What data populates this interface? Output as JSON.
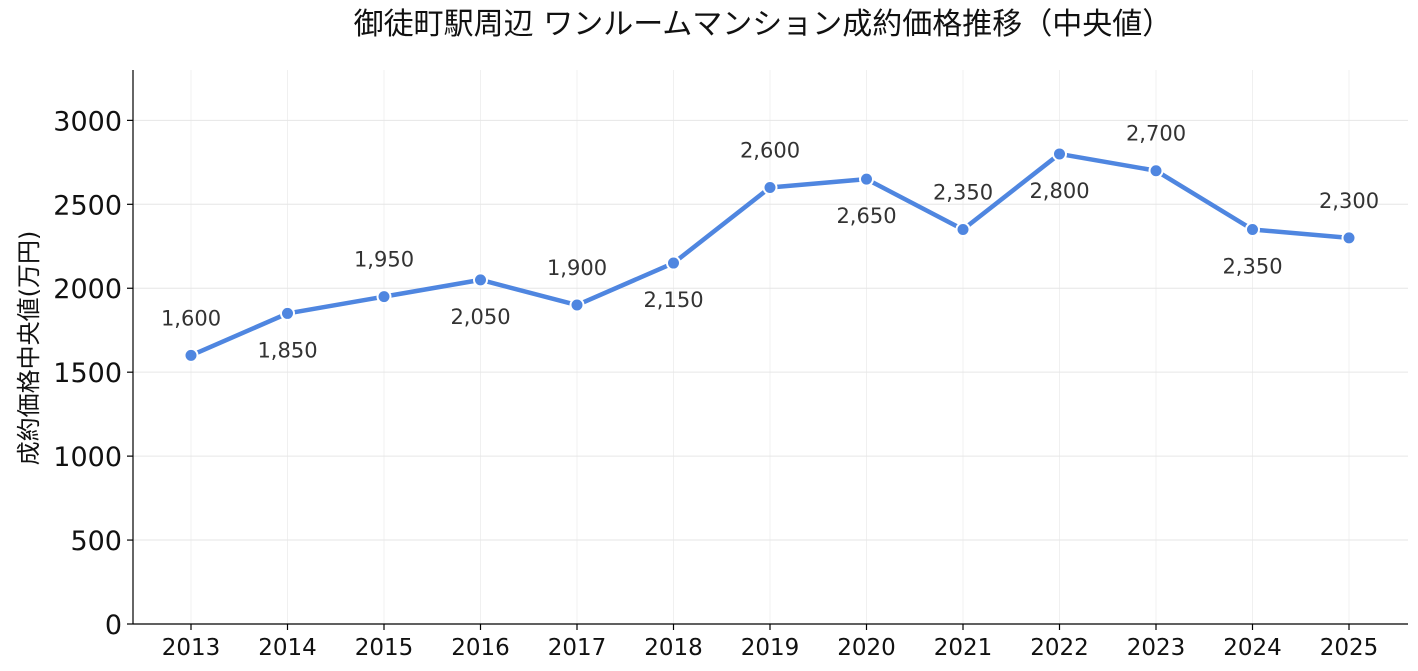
{
  "chart_data": {
    "type": "line",
    "title": "御徒町駅周辺 ワンルームマンション成約価格推移（中央値）",
    "xlabel": "",
    "ylabel": "成約価格中央値(万円)",
    "x": [
      "2013",
      "2014",
      "2015",
      "2016",
      "2017",
      "2018",
      "2019",
      "2020",
      "2021",
      "2022",
      "2023",
      "2024",
      "2025"
    ],
    "series": [
      {
        "values": [
          1600,
          1850,
          1950,
          2050,
          1900,
          2150,
          2600,
          2650,
          2350,
          2800,
          2700,
          2350,
          2300
        ],
        "data_labels": [
          "1,600",
          "1,850",
          "1,950",
          "2,050",
          "1,900",
          "2,150",
          "2,600",
          "2,650",
          "2,350",
          "2,800",
          "2,700",
          "2,350",
          "2,300"
        ],
        "label_positions": [
          "above",
          "below",
          "above",
          "below",
          "above",
          "below",
          "above",
          "below",
          "above",
          "below",
          "above",
          "below",
          "above"
        ],
        "color": "#4f86e0"
      }
    ],
    "yticks": [
      0,
      500,
      1000,
      1500,
      2000,
      2500,
      3000
    ],
    "ytick_labels": [
      "0",
      "500",
      "1000",
      "1500",
      "2000",
      "2500",
      "3000"
    ],
    "ylim": [
      0,
      3300
    ],
    "grid": true,
    "legend": "none"
  }
}
